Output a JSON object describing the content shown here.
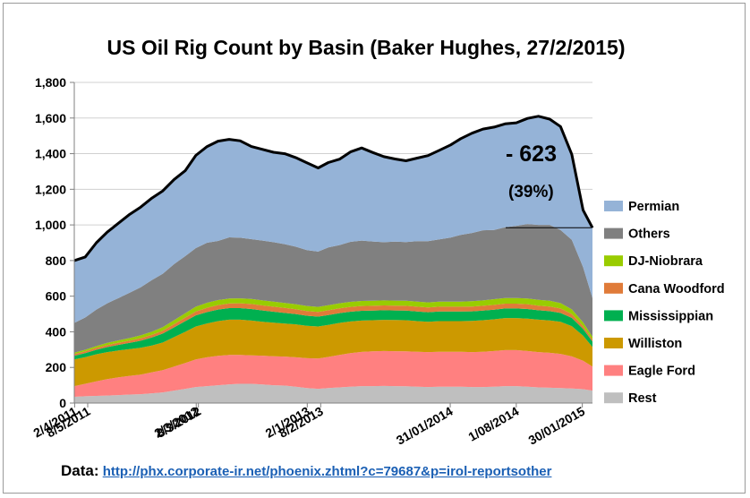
{
  "chart_data": {
    "type": "area",
    "stacked": true,
    "title": "US Oil Rig Count by Basin (Baker Hughes, 27/2/2015)",
    "xlabel": "",
    "ylabel": "",
    "ylim": [
      0,
      1800
    ],
    "y_ticks": [
      "0",
      "200",
      "400",
      "600",
      "800",
      "1,000",
      "1,200",
      "1,400",
      "1,600",
      "1,800"
    ],
    "x_ticks": [
      "2/4/2011",
      "8/5/2011",
      "2/3/2012",
      "8/3/2012",
      "2/1/2013",
      "8/2/2013",
      "31/01/2014",
      "1/08/2014",
      "30/01/2015"
    ],
    "grid": true,
    "legend_position": "right",
    "x": [
      "2011-04-01",
      "2011-05-01",
      "2011-06-01",
      "2011-07-01",
      "2011-08-01",
      "2011-09-01",
      "2011-10-01",
      "2011-11-01",
      "2011-12-01",
      "2012-01-01",
      "2012-02-01",
      "2012-03-01",
      "2012-04-01",
      "2012-05-01",
      "2012-06-01",
      "2012-07-01",
      "2012-08-01",
      "2012-09-01",
      "2012-10-01",
      "2012-11-01",
      "2012-12-01",
      "2013-01-01",
      "2013-02-01",
      "2013-03-01",
      "2013-04-01",
      "2013-05-01",
      "2013-06-01",
      "2013-07-01",
      "2013-08-01",
      "2013-09-01",
      "2013-10-01",
      "2013-11-01",
      "2013-12-01",
      "2014-01-01",
      "2014-02-01",
      "2014-03-01",
      "2014-04-01",
      "2014-05-01",
      "2014-06-01",
      "2014-07-01",
      "2014-08-01",
      "2014-09-01",
      "2014-10-01",
      "2014-11-01",
      "2014-12-01",
      "2015-01-01",
      "2015-02-01",
      "2015-02-27"
    ],
    "series": [
      {
        "name": "Rest",
        "color": "#bfbfbf",
        "values": [
          35,
          38,
          40,
          42,
          45,
          48,
          50,
          55,
          60,
          70,
          80,
          90,
          95,
          100,
          105,
          108,
          108,
          104,
          100,
          98,
          92,
          84,
          80,
          84,
          88,
          92,
          95,
          95,
          96,
          95,
          94,
          92,
          90,
          92,
          92,
          92,
          90,
          90,
          92,
          95,
          95,
          92,
          88,
          86,
          84,
          82,
          78,
          70
        ]
      },
      {
        "name": "Eagle Ford",
        "color": "#ff8080",
        "values": [
          60,
          70,
          82,
          92,
          100,
          105,
          110,
          118,
          125,
          135,
          145,
          155,
          162,
          165,
          165,
          162,
          160,
          162,
          163,
          163,
          165,
          168,
          170,
          175,
          182,
          188,
          192,
          195,
          196,
          196,
          196,
          196,
          196,
          196,
          196,
          196,
          196,
          198,
          200,
          202,
          202,
          200,
          198,
          196,
          192,
          180,
          160,
          135
        ]
      },
      {
        "name": "Williston",
        "color": "#cc9900",
        "values": [
          150,
          150,
          152,
          152,
          150,
          150,
          150,
          150,
          155,
          165,
          175,
          185,
          190,
          195,
          198,
          198,
          195,
          190,
          188,
          185,
          185,
          182,
          180,
          180,
          180,
          178,
          176,
          175,
          175,
          175,
          175,
          172,
          170,
          172,
          172,
          172,
          175,
          177,
          178,
          180,
          180,
          182,
          182,
          182,
          180,
          170,
          140,
          110
        ]
      },
      {
        "name": "Mississippian",
        "color": "#00b050",
        "values": [
          20,
          22,
          25,
          28,
          32,
          35,
          40,
          45,
          50,
          55,
          60,
          62,
          64,
          65,
          65,
          65,
          65,
          64,
          62,
          60,
          58,
          56,
          55,
          55,
          55,
          55,
          55,
          54,
          54,
          54,
          54,
          54,
          54,
          54,
          54,
          54,
          54,
          54,
          54,
          54,
          54,
          54,
          53,
          52,
          50,
          46,
          38,
          30
        ]
      },
      {
        "name": "Cana Woodford",
        "color": "#e07b39",
        "values": [
          10,
          10,
          11,
          12,
          12,
          13,
          14,
          15,
          16,
          18,
          20,
          22,
          24,
          25,
          26,
          27,
          28,
          28,
          28,
          28,
          27,
          27,
          27,
          27,
          27,
          27,
          27,
          27,
          27,
          27,
          27,
          27,
          27,
          27,
          27,
          27,
          27,
          27,
          27,
          27,
          27,
          27,
          26,
          26,
          25,
          22,
          17,
          12
        ]
      },
      {
        "name": "DJ-Niobrara",
        "color": "#99cc00",
        "values": [
          8,
          9,
          10,
          12,
          13,
          14,
          16,
          18,
          20,
          22,
          25,
          27,
          28,
          28,
          28,
          28,
          28,
          28,
          28,
          28,
          28,
          28,
          28,
          28,
          28,
          28,
          28,
          28,
          28,
          28,
          28,
          28,
          28,
          28,
          28,
          28,
          30,
          30,
          32,
          32,
          32,
          32,
          32,
          32,
          30,
          26,
          20,
          15
        ]
      },
      {
        "name": "Others",
        "color": "#808080",
        "values": [
          167,
          181,
          205,
          222,
          238,
          255,
          270,
          290,
          300,
          315,
          320,
          329,
          337,
          332,
          343,
          340,
          336,
          336,
          334,
          330,
          323,
          314,
          310,
          325,
          327,
          337,
          339,
          333,
          327,
          331,
          330,
          340,
          344,
          350,
          360,
          375,
          383,
          394,
          389,
          397,
          405,
          418,
          421,
          426,
          411,
          390,
          310,
          218
        ]
      },
      {
        "name": "Permian",
        "color": "#95b3d7",
        "values": [
          350,
          340,
          375,
          400,
          420,
          440,
          450,
          460,
          465,
          475,
          480,
          520,
          540,
          560,
          550,
          544,
          520,
          512,
          505,
          508,
          500,
          490,
          470,
          476,
          482,
          505,
          520,
          500,
          480,
          464,
          456,
          466,
          480,
          500,
          520,
          540,
          560,
          568,
          577,
          580,
          578,
          593,
          610,
          594,
          580,
          480,
          320,
          394
        ]
      }
    ],
    "total_line": {
      "color": "#000000"
    },
    "annotations": [
      {
        "text": "- 623",
        "type": "big"
      },
      {
        "text": "(39%)",
        "type": "small"
      }
    ]
  },
  "source": {
    "label": "Data:",
    "url_text": "http://phx.corporate-ir.net/phoenix.zhtml?c=79687&p=irol-reportsother"
  }
}
